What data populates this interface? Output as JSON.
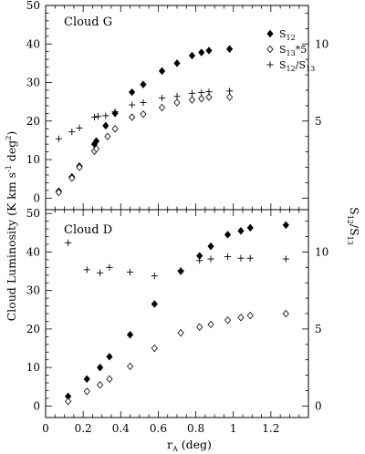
{
  "chart_data": {
    "type": "scatter",
    "xlabel_main": "r",
    "xlabel_sub": "A",
    "xlabel_suffix": " (deg)",
    "ylabel_left": "Cloud Luminosity (K km s",
    "ylabel_left_sup1": "-1",
    "ylabel_left_mid": " deg",
    "ylabel_left_sup2": "2",
    "ylabel_left_end": ")",
    "ylabel_right_main": "S",
    "ylabel_right_sub1": "12",
    "ylabel_right_slash": "/S",
    "ylabel_right_sub2": "13",
    "xlim": [
      0,
      1.4
    ],
    "x_ticks": [
      "0",
      "0.2",
      "0.4",
      "0.6",
      "0.8",
      "1",
      "1.2"
    ],
    "legend": {
      "placement": "top-right",
      "entries": [
        {
          "main": "S",
          "sub": "12",
          "rest": ""
        },
        {
          "main": "S",
          "sub": "13",
          "rest": "*5"
        },
        {
          "main": "S",
          "sub": "12",
          "rest": "/S",
          "sub2": "13"
        }
      ]
    },
    "panels": [
      {
        "label": "Cloud G",
        "ylim": [
          -3,
          50
        ],
        "y_ticks": [
          0,
          10,
          20,
          30,
          40,
          50
        ],
        "y2lim": [
          -0.75,
          12.5
        ],
        "y2_ticks": [
          5,
          10
        ],
        "series": [
          {
            "marker": "filled-diamond",
            "x": [
              0.07,
              0.14,
              0.18,
              0.26,
              0.27,
              0.32,
              0.37,
              0.46,
              0.52,
              0.62,
              0.7,
              0.78,
              0.83,
              0.87,
              0.98
            ],
            "y": [
              1.8,
              5.5,
              8.3,
              14.0,
              14.8,
              18.8,
              22.0,
              27.5,
              29.5,
              33.0,
              35.0,
              37.0,
              37.8,
              38.3,
              38.7
            ]
          },
          {
            "marker": "open-diamond",
            "x": [
              0.07,
              0.14,
              0.18,
              0.26,
              0.27,
              0.33,
              0.37,
              0.46,
              0.52,
              0.62,
              0.7,
              0.78,
              0.83,
              0.87,
              0.98
            ],
            "y": [
              1.5,
              5.2,
              8.0,
              12.2,
              12.8,
              16.0,
              18.0,
              21.0,
              21.8,
              23.5,
              24.8,
              25.5,
              25.8,
              26.2,
              26.2
            ]
          },
          {
            "marker": "plus",
            "x": [
              0.07,
              0.14,
              0.18,
              0.26,
              0.28,
              0.32,
              0.37,
              0.46,
              0.52,
              0.62,
              0.7,
              0.78,
              0.83,
              0.87,
              0.98
            ],
            "y": [
              3.85,
              4.3,
              4.55,
              5.25,
              5.3,
              5.35,
              5.6,
              6.05,
              6.2,
              6.5,
              6.6,
              6.8,
              6.85,
              6.9,
              6.95
            ]
          }
        ]
      },
      {
        "label": "Cloud D",
        "ylim": [
          -3,
          51
        ],
        "y_ticks": [
          0,
          10,
          20,
          30,
          40,
          50
        ],
        "y2lim": [
          -0.75,
          12.75
        ],
        "y2_ticks": [
          0,
          5,
          10
        ],
        "series": [
          {
            "marker": "filled-diamond",
            "x": [
              0.12,
              0.22,
              0.29,
              0.34,
              0.45,
              0.58,
              0.72,
              0.82,
              0.88,
              0.97,
              1.04,
              1.09,
              1.28
            ],
            "y": [
              2.5,
              7.0,
              10.0,
              12.8,
              18.5,
              26.5,
              35.0,
              39.0,
              41.5,
              44.5,
              45.5,
              46.3,
              47.0
            ]
          },
          {
            "marker": "open-diamond",
            "x": [
              0.12,
              0.22,
              0.29,
              0.34,
              0.45,
              0.58,
              0.72,
              0.82,
              0.88,
              0.97,
              1.04,
              1.09,
              1.28
            ],
            "y": [
              1.2,
              3.8,
              5.5,
              7.0,
              10.3,
              15.0,
              19.0,
              20.5,
              21.2,
              22.3,
              23.0,
              23.5,
              24.0
            ]
          },
          {
            "marker": "plus",
            "x": [
              0.12,
              0.22,
              0.29,
              0.34,
              0.45,
              0.58,
              0.72,
              0.82,
              0.88,
              0.97,
              1.04,
              1.09,
              1.28
            ],
            "y": [
              10.6,
              8.85,
              8.65,
              9.0,
              8.7,
              8.45,
              8.8,
              9.45,
              9.55,
              9.7,
              9.6,
              9.6,
              9.55
            ]
          }
        ]
      }
    ]
  }
}
